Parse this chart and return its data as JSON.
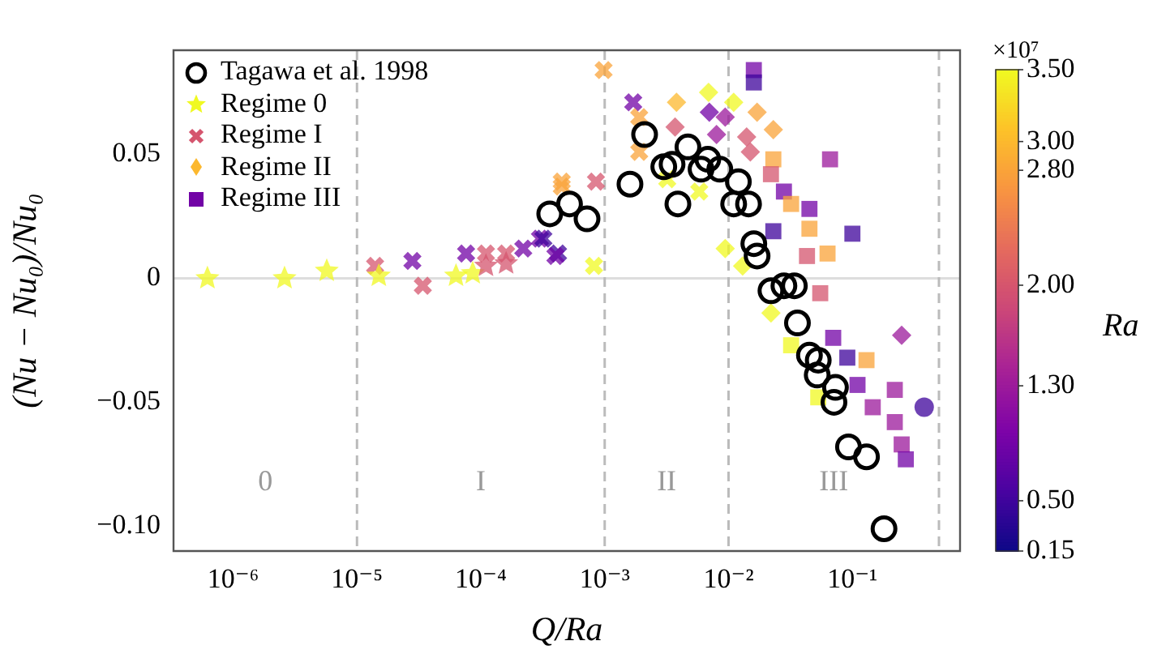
{
  "chart_data": {
    "type": "scatter",
    "xlabel": "Q/Ra",
    "ylabel": "(Nu − Nu₀)/Nu₀",
    "clabel": "Ra",
    "log": "x",
    "xlim": [
      3.3e-07,
      0.74
    ],
    "xticks": [
      {
        "value": 1e-06,
        "label": "10⁻⁶"
      },
      {
        "value": 1e-05,
        "label": "10⁻⁵"
      },
      {
        "value": 0.0001,
        "label": "10⁻⁴"
      },
      {
        "value": 0.001,
        "label": "10⁻³"
      },
      {
        "value": 0.01,
        "label": "10⁻²"
      },
      {
        "value": 0.1,
        "label": "10⁻¹"
      }
    ],
    "ylim": [
      -0.11,
      0.092
    ],
    "yticks": [
      {
        "value": -0.1,
        "label": "−0.10"
      },
      {
        "value": -0.05,
        "label": "−0.05"
      },
      0,
      0.05
    ],
    "clim": [
      0.15,
      3.5
    ],
    "cticks": [
      {
        "value": 0.15,
        "label": "0.15"
      },
      {
        "value": 0.5,
        "label": "0.50"
      },
      {
        "value": 1.3,
        "label": "1.30"
      },
      {
        "value": 2,
        "label": "2.00"
      },
      {
        "value": 2.8,
        "label": "2.80"
      },
      {
        "value": 3,
        "label": "3.00"
      },
      {
        "value": 3.5,
        "label": "3.50"
      }
    ],
    "grid": false,
    "legend": "top left",
    "ref_lines": [
      {
        "axis": "y",
        "value": 0,
        "color": "#dddddd",
        "line_style": "solid"
      },
      {
        "axis": "x",
        "value": 1e-05,
        "color": "#bbbbbb",
        "line_style": "dashed"
      },
      {
        "axis": "x",
        "value": 0.001,
        "color": "#bbbbbb",
        "line_style": "dashed"
      },
      {
        "axis": "x",
        "value": 0.01,
        "color": "#bbbbbb",
        "line_style": "dashed"
      },
      {
        "axis": "x",
        "value": 0.5,
        "color": "#bbbbbb",
        "line_style": "dashed"
      }
    ],
    "annotations": [
      "×10⁷",
      "0",
      "I",
      "II",
      "III"
    ],
    "series": [
      {
        "name": "Tagawa et al. 1998",
        "marker": "circle",
        "color": "#000000",
        "x": [
          0.00036,
          0.00052,
          0.00072,
          0.0016,
          0.0021,
          0.0039,
          0.003,
          0.0035,
          0.0047,
          0.0068,
          0.006,
          0.0085,
          0.012,
          0.011,
          0.0145,
          0.016,
          0.017,
          0.022,
          0.028,
          0.034,
          0.036,
          0.045,
          0.053,
          0.052,
          0.073,
          0.071,
          0.093,
          0.13,
          0.18
        ],
        "values": [
          0.026,
          0.03,
          0.024,
          0.038,
          0.058,
          0.03,
          0.045,
          0.046,
          0.053,
          0.048,
          0.044,
          0.044,
          0.039,
          0.03,
          0.03,
          0.014,
          0.009,
          -0.005,
          -0.003,
          -0.003,
          -0.018,
          -0.031,
          -0.033,
          -0.039,
          -0.044,
          -0.05,
          -0.068,
          -0.072,
          -0.101
        ]
      },
      {
        "name": "Regime 0",
        "marker": "star",
        "x": [
          6.2e-07,
          2.6e-06,
          5.7e-06,
          1.5e-05,
          6.3e-05,
          8.6e-05,
          0.00011,
          0.00016
        ],
        "values": [
          0,
          0,
          0.003,
          0.001,
          0.001,
          0.002,
          0.005,
          0.006
        ],
        "cvalues": [
          3.5,
          3.5,
          3.5,
          3.5,
          3.5,
          3.5,
          2,
          2
        ],
        "colors": [
          "#f0f921",
          "#f0f921",
          "#f0f921",
          "#f0f921",
          "#f0f921",
          "#f0f921",
          "#d5556e",
          "#d5556e"
        ]
      },
      {
        "name": "Regime I",
        "marker": "cross",
        "x": [
          1.4e-05,
          2.8e-05,
          3.4e-05,
          7.6e-05,
          0.00011,
          0.00016,
          0.00022,
          0.0003,
          0.00042,
          0.00045,
          0.00098,
          0.0017,
          0.0019,
          0.0019,
          0.00082,
          0.0004,
          0.00032,
          0.00045,
          0.00085,
          0.0058,
          0.0032
        ],
        "values": [
          0.005,
          0.007,
          -0.003,
          0.01,
          0.01,
          0.01,
          0.012,
          0.016,
          0.01,
          0.039,
          0.084,
          0.071,
          0.065,
          0.051,
          0.005,
          0.009,
          0.016,
          0.037,
          0.039,
          0.035,
          0.04
        ],
        "cvalues": [
          2,
          0.9,
          2,
          0.9,
          2,
          2,
          0.9,
          0.9,
          0.5,
          2.8,
          2.8,
          0.9,
          2.8,
          2.8,
          3.5,
          0.9,
          0.5,
          2.8,
          2,
          3.5,
          3.5
        ],
        "colors": [
          "#d5556e",
          "#7203a6",
          "#d5556e",
          "#7203a6",
          "#d5556e",
          "#d5556e",
          "#7203a6",
          "#7203a6",
          "#3f049c",
          "#faa339",
          "#faa339",
          "#7203a6",
          "#faa339",
          "#faa339",
          "#f0f921",
          "#7203a6",
          "#3f049c",
          "#faa339",
          "#d5556e",
          "#f0f921",
          "#f0f921"
        ]
      },
      {
        "name": "Regime II",
        "marker": "diamond",
        "x": [
          0.0038,
          0.0069,
          0.011,
          0.017,
          0.023,
          0.007,
          0.0094,
          0.008,
          0.0037,
          0.014,
          0.015,
          0.0094,
          0.013,
          0.022,
          0.25
        ],
        "values": [
          0.071,
          0.075,
          0.071,
          0.067,
          0.06,
          0.067,
          0.065,
          0.058,
          0.061,
          0.057,
          0.051,
          0.012,
          0.005,
          -0.014,
          -0.023
        ],
        "cvalues": [
          3,
          3.5,
          3.5,
          2.8,
          2.8,
          0.9,
          1.3,
          1.3,
          2,
          2,
          2,
          3.5,
          3.5,
          3.5,
          1.3
        ],
        "colors": [
          "#fcb82e",
          "#f0f921",
          "#f0f921",
          "#faa339",
          "#faa339",
          "#7203a6",
          "#9c199b",
          "#9c199b",
          "#d5556e",
          "#d5556e",
          "#d5556e",
          "#f0f921",
          "#f0f921",
          "#f0f921",
          "#9c199b"
        ]
      },
      {
        "name": "Regime III",
        "marker": "square",
        "x": [
          0.016,
          0.016,
          0.023,
          0.022,
          0.028,
          0.032,
          0.045,
          0.045,
          0.066,
          0.023,
          0.1,
          0.043,
          0.063,
          0.055,
          0.032,
          0.07,
          0.091,
          0.13,
          0.11,
          0.146,
          0.22,
          0.22,
          0.25,
          0.27,
          0.053
        ],
        "values": [
          0.084,
          0.079,
          0.048,
          0.042,
          0.035,
          0.03,
          0.028,
          0.02,
          0.048,
          0.019,
          0.018,
          0.009,
          0.01,
          -0.006,
          -0.027,
          -0.024,
          -0.032,
          -0.033,
          -0.043,
          -0.052,
          -0.045,
          -0.058,
          -0.067,
          -0.073,
          -0.048
        ],
        "cvalues": [
          0.9,
          0.5,
          2.8,
          2,
          0.9,
          2.8,
          0.9,
          2.8,
          1.3,
          0.5,
          0.5,
          2,
          2.8,
          2,
          3.5,
          0.9,
          0.5,
          2.8,
          0.9,
          1.3,
          1.3,
          1.3,
          1.3,
          0.9,
          3.5
        ],
        "colors": [
          "#7203a6",
          "#3f049c",
          "#faa339",
          "#d5556e",
          "#7203a6",
          "#faa339",
          "#7203a6",
          "#faa339",
          "#9c199b",
          "#3f049c",
          "#3f049c",
          "#d5556e",
          "#faa339",
          "#d5556e",
          "#f0f921",
          "#7203a6",
          "#3f049c",
          "#faa339",
          "#7203a6",
          "#9c199b",
          "#9c199b",
          "#9c199b",
          "#9c199b",
          "#7203a6",
          "#f0f921"
        ]
      },
      {
        "marker": "circle",
        "x": [
          0.38
        ],
        "values": [
          -0.052
        ],
        "cvalues": [
          0.5
        ],
        "colors": [
          "#3f049c"
        ]
      }
    ]
  }
}
